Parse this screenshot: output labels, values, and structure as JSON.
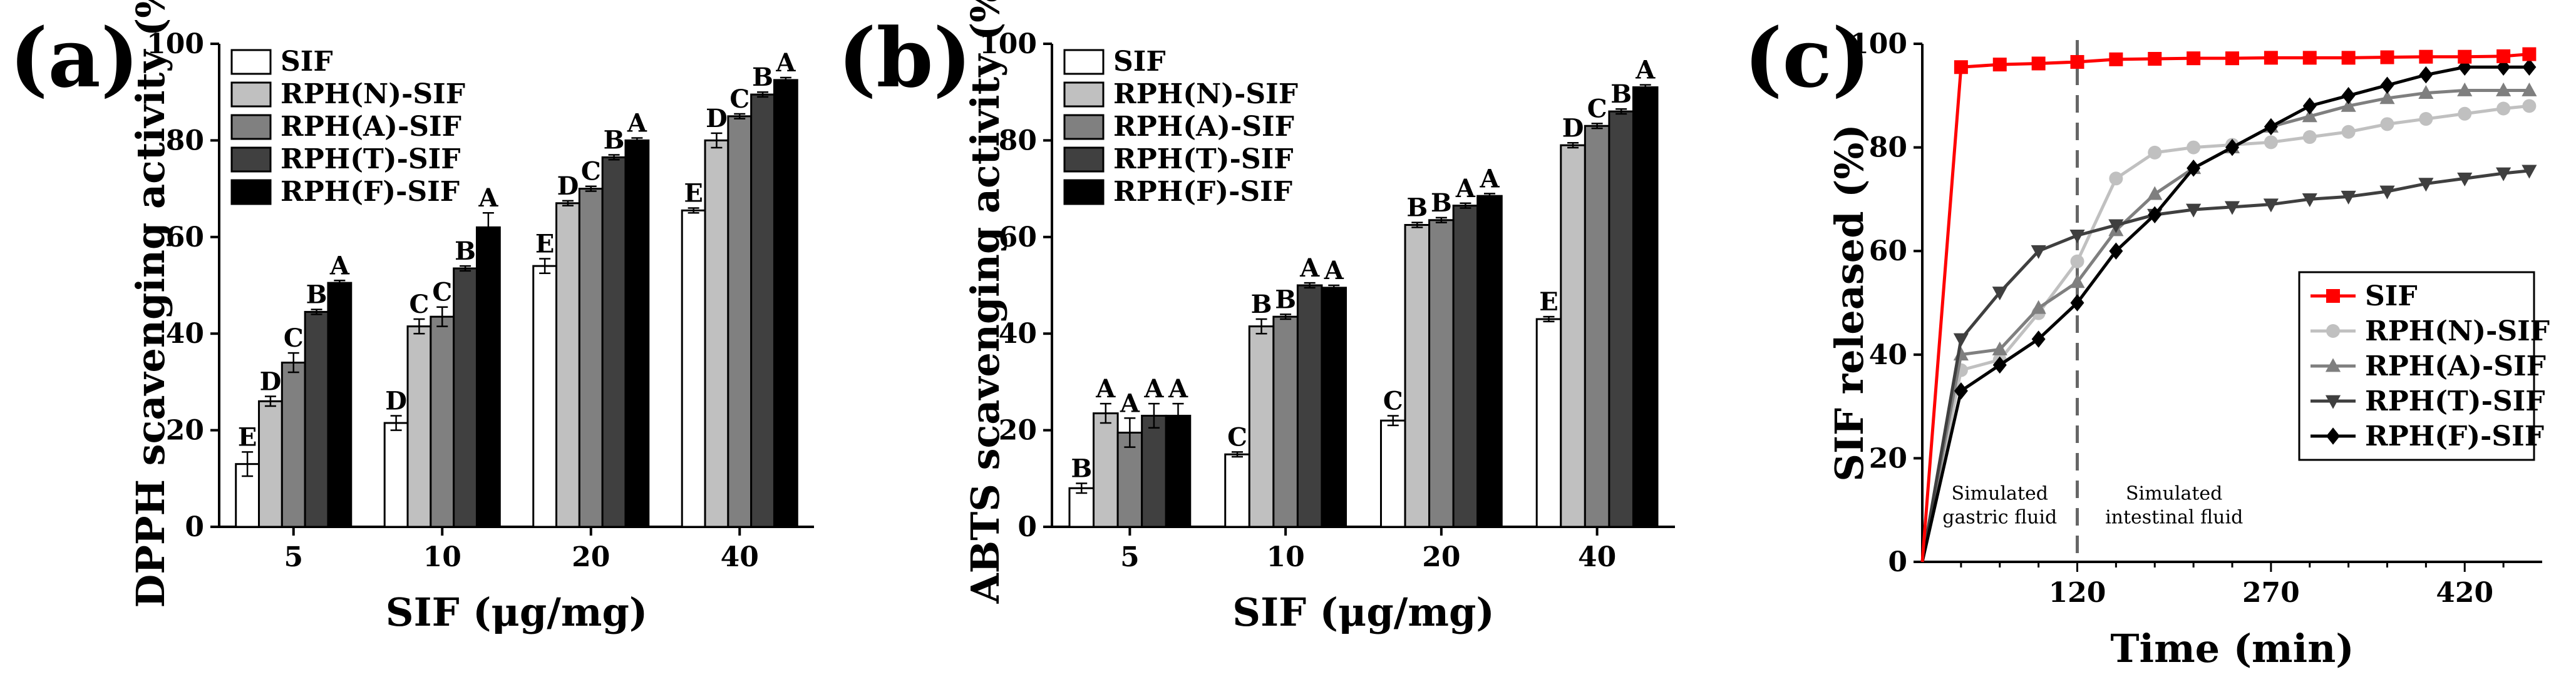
{
  "chart_data": [
    {
      "panel": "(a)",
      "type": "bar",
      "xlabel": "SIF (μg/mg)",
      "ylabel": "DPPH scavenging activity (%)",
      "categories": [
        "5",
        "10",
        "20",
        "40"
      ],
      "ylim": [
        0,
        100
      ],
      "yticks": [
        0,
        20,
        40,
        60,
        80,
        100
      ],
      "legend_position": "top-left",
      "series": [
        {
          "name": "SIF",
          "color": "#ffffff",
          "values": [
            13,
            21.5,
            54,
            65.5
          ],
          "errors": [
            2.5,
            1.5,
            1.5,
            0.5
          ],
          "labels": [
            "E",
            "D",
            "E",
            "E"
          ]
        },
        {
          "name": "RPH(N)-SIF",
          "color": "#c0c0c0",
          "values": [
            26,
            41.5,
            67,
            80
          ],
          "errors": [
            1,
            1.5,
            0.5,
            1.5
          ],
          "labels": [
            "D",
            "C",
            "D",
            "D"
          ]
        },
        {
          "name": "RPH(A)-SIF",
          "color": "#808080",
          "values": [
            34,
            43.5,
            70,
            85
          ],
          "errors": [
            2,
            2,
            0.5,
            0.5
          ],
          "labels": [
            "C",
            "C",
            "C",
            "C"
          ]
        },
        {
          "name": "RPH(T)-SIF",
          "color": "#404040",
          "values": [
            44.5,
            53.5,
            76.5,
            89.5
          ],
          "errors": [
            0.5,
            0.5,
            0.5,
            0.5
          ],
          "labels": [
            "B",
            "B",
            "B",
            "B"
          ]
        },
        {
          "name": "RPH(F)-SIF",
          "color": "#000000",
          "values": [
            50.5,
            62,
            80,
            92.5
          ],
          "errors": [
            0.5,
            3,
            0.5,
            0.5
          ],
          "labels": [
            "A",
            "A",
            "A",
            "A"
          ]
        }
      ]
    },
    {
      "panel": "(b)",
      "type": "bar",
      "xlabel": "SIF (μg/mg)",
      "ylabel": "ABTS scavenging activity (%)",
      "categories": [
        "5",
        "10",
        "20",
        "40"
      ],
      "ylim": [
        0,
        100
      ],
      "yticks": [
        0,
        20,
        40,
        60,
        80,
        100
      ],
      "legend_position": "top-left",
      "series": [
        {
          "name": "SIF",
          "color": "#ffffff",
          "values": [
            8,
            15,
            22,
            43
          ],
          "errors": [
            1,
            0.5,
            1,
            0.5
          ],
          "labels": [
            "B",
            "C",
            "C",
            "E"
          ]
        },
        {
          "name": "RPH(N)-SIF",
          "color": "#c0c0c0",
          "values": [
            23.5,
            41.5,
            62.5,
            79
          ],
          "errors": [
            2,
            1.5,
            0.5,
            0.5
          ],
          "labels": [
            "A",
            "B",
            "B",
            "D"
          ]
        },
        {
          "name": "RPH(A)-SIF",
          "color": "#808080",
          "values": [
            19.5,
            43.5,
            63.5,
            83
          ],
          "errors": [
            3,
            0.5,
            0.5,
            0.5
          ],
          "labels": [
            "A",
            "B",
            "B",
            "C"
          ]
        },
        {
          "name": "RPH(T)-SIF",
          "color": "#404040",
          "values": [
            23,
            50,
            66.5,
            86
          ],
          "errors": [
            2.5,
            0.5,
            0.5,
            0.5
          ],
          "labels": [
            "A",
            "A",
            "A",
            "B"
          ]
        },
        {
          "name": "RPH(F)-SIF",
          "color": "#000000",
          "values": [
            23,
            49.5,
            68.5,
            91
          ],
          "errors": [
            2.5,
            0.5,
            0.5,
            0.5
          ],
          "labels": [
            "A",
            "A",
            "A",
            "A"
          ]
        }
      ]
    },
    {
      "panel": "(c)",
      "type": "line",
      "xlabel": "Time (min)",
      "ylabel": "SIF released (%)",
      "xlim": [
        0,
        480
      ],
      "ylim": [
        0,
        100
      ],
      "xticks": [
        120,
        270,
        420
      ],
      "yticks": [
        0,
        20,
        40,
        60,
        80,
        100
      ],
      "divider_x": 120,
      "phase_labels": [
        {
          "text": "Simulated\ngastric fluid",
          "x": 60,
          "y": 12
        },
        {
          "text": "Simulated\nintestinal fluid",
          "x": 195,
          "y": 12
        }
      ],
      "legend_position": "bottom-right",
      "series": [
        {
          "name": "SIF",
          "color": "#ff0000",
          "marker": "square",
          "x": [
            0,
            30,
            60,
            90,
            120,
            150,
            180,
            210,
            240,
            270,
            300,
            330,
            360,
            390,
            420,
            450,
            470
          ],
          "y": [
            0,
            95.5,
            96,
            96.2,
            96.5,
            97,
            97.1,
            97.2,
            97.2,
            97.3,
            97.3,
            97.3,
            97.4,
            97.5,
            97.5,
            97.6,
            98
          ]
        },
        {
          "name": "RPH(N)-SIF",
          "color": "#c0c0c0",
          "marker": "circle",
          "x": [
            0,
            30,
            60,
            90,
            120,
            150,
            180,
            210,
            240,
            270,
            300,
            330,
            360,
            390,
            420,
            450,
            470
          ],
          "y": [
            0,
            37,
            39,
            48,
            58,
            74,
            79,
            80,
            80.5,
            81,
            82,
            83,
            84.5,
            85.5,
            86.5,
            87.5,
            88
          ]
        },
        {
          "name": "RPH(A)-SIF",
          "color": "#7f7f7f",
          "marker": "triangle-up",
          "x": [
            0,
            30,
            60,
            90,
            120,
            150,
            180,
            210,
            240,
            270,
            300,
            330,
            360,
            390,
            420,
            450,
            470
          ],
          "y": [
            0,
            40,
            41,
            49,
            54,
            64,
            71,
            76,
            80,
            84,
            86,
            88,
            89.5,
            90.5,
            91,
            91,
            91
          ]
        },
        {
          "name": "RPH(T)-SIF",
          "color": "#3f3f3f",
          "marker": "triangle-down",
          "x": [
            0,
            30,
            60,
            90,
            120,
            150,
            180,
            210,
            240,
            270,
            300,
            330,
            360,
            390,
            420,
            450,
            470
          ],
          "y": [
            0,
            43,
            52,
            60,
            63,
            65,
            67,
            68,
            68.5,
            69,
            70,
            70.5,
            71.5,
            73,
            74,
            75,
            75.5
          ]
        },
        {
          "name": "RPH(F)-SIF",
          "color": "#000000",
          "marker": "diamond",
          "x": [
            0,
            30,
            60,
            90,
            120,
            150,
            180,
            210,
            240,
            270,
            300,
            330,
            360,
            390,
            420,
            450,
            470
          ],
          "y": [
            0,
            33,
            38,
            43,
            50,
            60,
            67,
            76,
            80,
            84,
            88,
            90,
            92,
            94,
            95.5,
            95.5,
            95.5
          ]
        }
      ]
    }
  ]
}
